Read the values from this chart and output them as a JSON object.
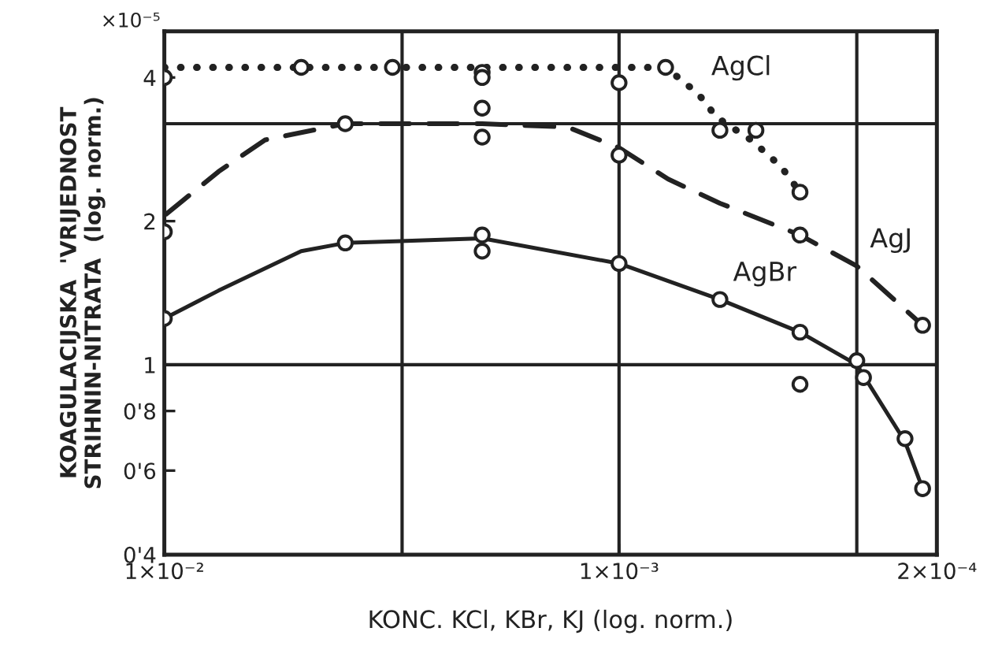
{
  "chart_data": {
    "type": "line",
    "xlabel": "KONC. KCl, KBr, KJ (log. norm.)",
    "ylabel": "KOAGULACIJSKA  'VRIJEDNOST\nSTRIHNIN-NITRATA  (log. norm.)",
    "log": "xy",
    "xlim": [
      0.01,
      0.0002
    ],
    "xticks": [
      {
        "value": 0.01,
        "label": "1×10⁻²"
      },
      {
        "value": 0.001,
        "label": "1×10⁻³"
      },
      {
        "value": 0.0002,
        "label": "2×10⁻⁴"
      }
    ],
    "ylim": [
      0.4,
      5
    ],
    "yticks": [
      {
        "value": 0.4,
        "label": "0'4"
      },
      {
        "value": 0.6,
        "label": "0'6"
      },
      {
        "value": 0.8,
        "label": "0'8"
      },
      1,
      2,
      4
    ],
    "ref_lines": [
      {
        "axis": "x",
        "value": 0.003
      },
      {
        "axis": "x",
        "value": 0.001
      },
      {
        "axis": "x",
        "value": 0.0003
      },
      {
        "axis": "y",
        "value": 1
      },
      {
        "axis": "y",
        "value": 3.2
      }
    ],
    "grid": false,
    "series": [
      {
        "line_style": "dotted",
        "marker": "none",
        "color": "#222222",
        "x": [
          0.01,
          0.002,
          0.00079,
          0.00067,
          0.00061,
          0.00051,
          0.00044,
          0.0004
        ],
        "values": [
          4.2,
          4.2,
          4.2,
          3.7,
          3.3,
          2.95,
          2.6,
          2.3
        ]
      },
      {
        "type": "scatter",
        "marker": "circle",
        "color": "#222222",
        "x": [
          0.01,
          0.005,
          0.00315,
          0.002,
          0.002,
          0.001,
          0.00079,
          0.0006,
          0.0005,
          0.0004
        ],
        "values": [
          4.0,
          4.2,
          4.2,
          4.1,
          4.0,
          3.9,
          4.2,
          3.1,
          3.1,
          2.3
        ]
      },
      {
        "line_style": "dashed",
        "marker": "none",
        "color": "#222222",
        "x": [
          0.0099,
          0.0076,
          0.006,
          0.004,
          0.002,
          0.0013,
          0.001,
          0.00078,
          0.0006,
          0.0004,
          0.0003,
          0.000215
        ],
        "values": [
          2.07,
          2.54,
          2.96,
          3.2,
          3.2,
          3.15,
          2.85,
          2.45,
          2.18,
          1.87,
          1.61,
          1.21
        ]
      },
      {
        "type": "scatter",
        "marker": "circle",
        "color": "#222222",
        "x": [
          0.01,
          0.004,
          0.002,
          0.002,
          0.001,
          0.0004,
          0.000215
        ],
        "values": [
          1.9,
          3.2,
          3.45,
          3.0,
          2.75,
          1.87,
          1.21
        ]
      },
      {
        "line_style": "solid",
        "marker": "none",
        "color": "#222222",
        "x": [
          0.01,
          0.0076,
          0.005,
          0.004,
          0.002,
          0.001,
          0.0006,
          0.0004,
          0.0003,
          0.000235,
          0.000215
        ],
        "values": [
          1.25,
          1.43,
          1.73,
          1.8,
          1.84,
          1.63,
          1.37,
          1.17,
          1.0,
          0.69,
          0.55
        ]
      },
      {
        "type": "scatter",
        "marker": "circle",
        "color": "#222222",
        "x": [
          0.01,
          0.004,
          0.002,
          0.002,
          0.001,
          0.0006,
          0.0004,
          0.0004,
          0.0003,
          0.00029,
          0.000235,
          0.000215
        ],
        "values": [
          1.25,
          1.8,
          1.87,
          1.73,
          1.63,
          1.37,
          1.17,
          0.91,
          1.02,
          0.94,
          0.7,
          0.55
        ]
      }
    ],
    "annotations": [
      {
        "text": "×10⁻⁵"
      },
      {
        "text": "AgCl",
        "x": 0.00067,
        "y": 3.7
      },
      {
        "text": "AgJ",
        "x": 0.0003,
        "y": 1.61
      },
      {
        "text": "AgBr",
        "x": 0.0006,
        "y": 1.37
      }
    ]
  }
}
